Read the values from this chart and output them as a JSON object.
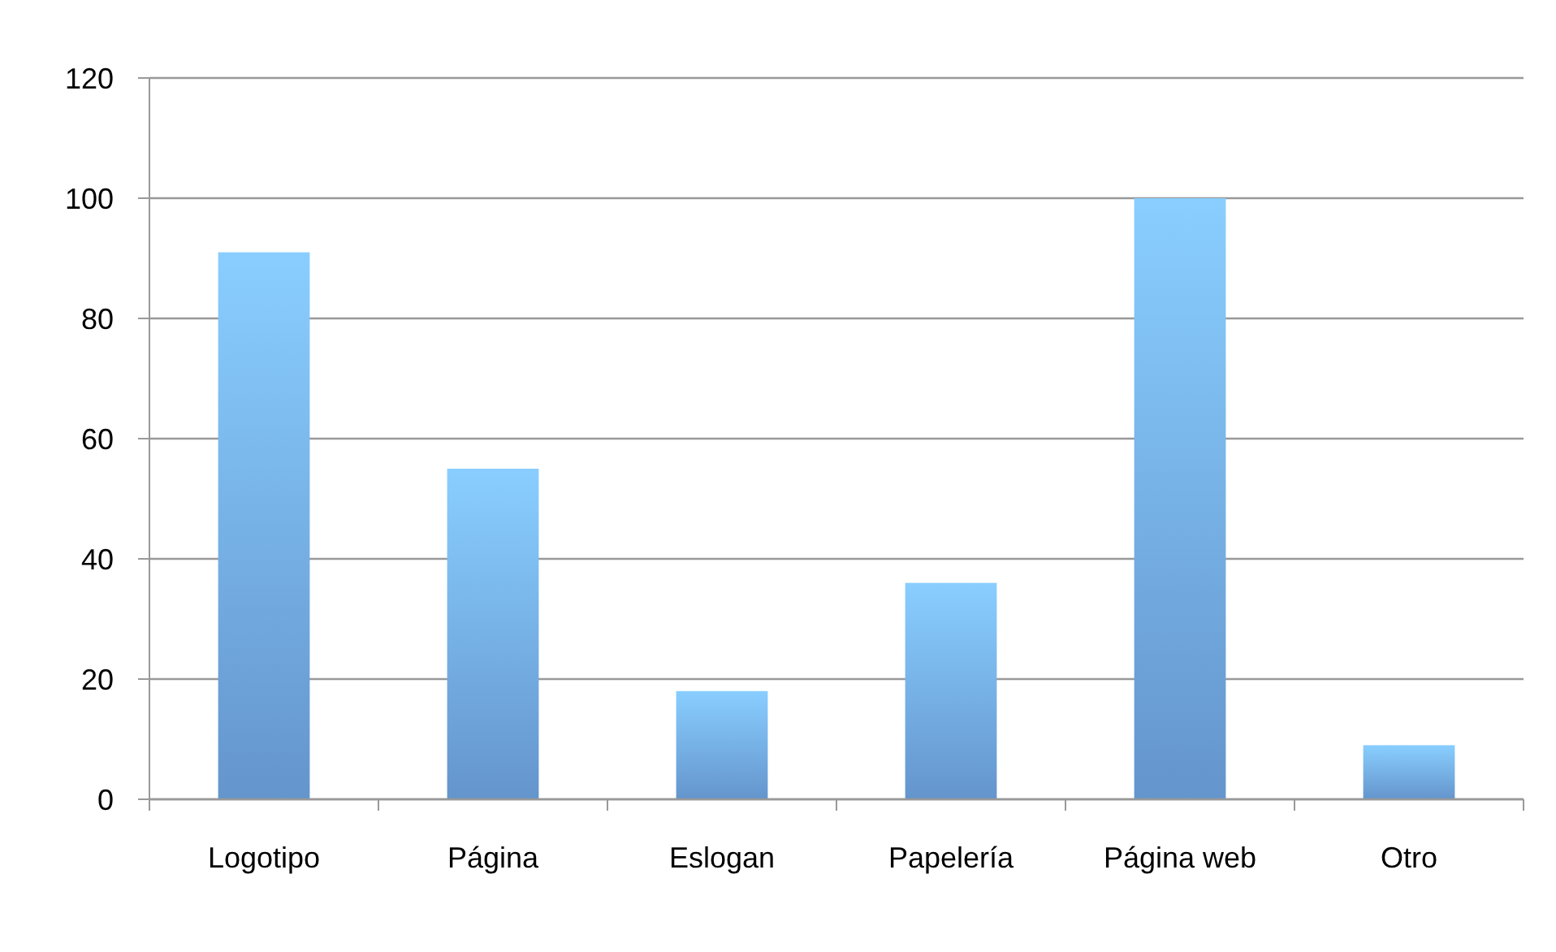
{
  "chart_data": {
    "type": "bar",
    "categories": [
      "Logotipo",
      "Página",
      "Eslogan",
      "Papelería",
      "Página web",
      "Otro"
    ],
    "values": [
      91,
      55,
      18,
      36,
      100,
      9
    ],
    "color": "#6fa6e3",
    "ylim": [
      0,
      120
    ],
    "yticks": [
      0,
      20,
      40,
      60,
      80,
      100,
      120
    ],
    "grid": "y"
  }
}
